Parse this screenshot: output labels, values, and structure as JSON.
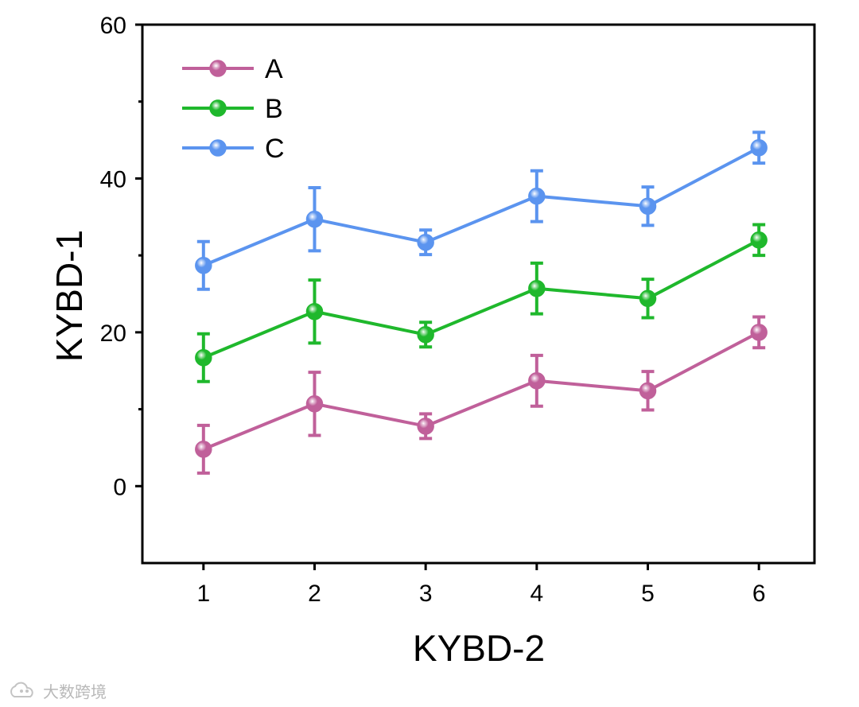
{
  "chart_data": {
    "type": "line",
    "xlabel": "KYBD-2",
    "ylabel": "KYBD-1",
    "xlim": [
      0.45,
      6.5
    ],
    "ylim": [
      -10,
      60
    ],
    "x": [
      1,
      2,
      3,
      4,
      5,
      6
    ],
    "x_ticks": [
      "1",
      "2",
      "3",
      "4",
      "5",
      "6"
    ],
    "y_ticks": [
      0,
      20,
      40,
      60
    ],
    "y_minor_ticks": [
      10,
      30,
      50
    ],
    "legend_position": "top-left",
    "series": [
      {
        "name": "A",
        "color": "#c0609a",
        "values": [
          4.8,
          10.7,
          7.8,
          13.7,
          12.4,
          20.0
        ],
        "errors": [
          3.1,
          4.1,
          1.6,
          3.3,
          2.5,
          2.0
        ]
      },
      {
        "name": "B",
        "color": "#1fb82c",
        "values": [
          16.7,
          22.7,
          19.7,
          25.7,
          24.4,
          32.0
        ],
        "errors": [
          3.1,
          4.1,
          1.6,
          3.3,
          2.5,
          2.0
        ]
      },
      {
        "name": "C",
        "color": "#5b94ef",
        "values": [
          28.7,
          34.7,
          31.7,
          37.7,
          36.4,
          44.0
        ],
        "errors": [
          3.1,
          4.1,
          1.6,
          3.3,
          2.5,
          2.0
        ]
      }
    ]
  },
  "watermark": {
    "text": "大数跨境",
    "icon": "cloud-logo-icon"
  }
}
